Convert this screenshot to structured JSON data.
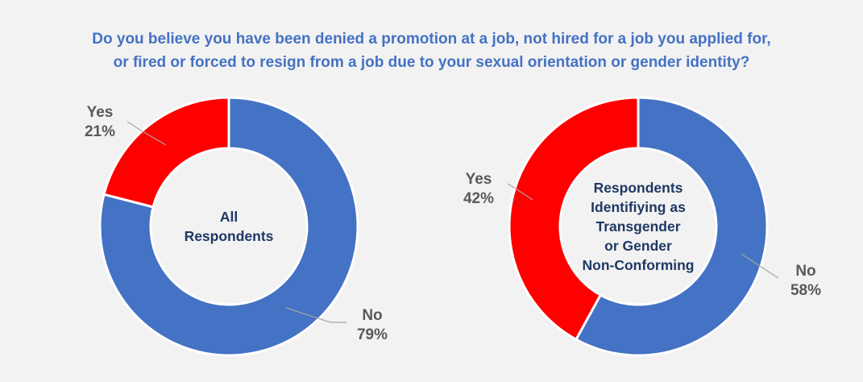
{
  "title": {
    "line1": "Do you believe you have been denied a promotion at a job, not hired for a job you applied for,",
    "line2": "or fired or forced to resign from a job due to your sexual orientation or gender identity?"
  },
  "colors": {
    "no": "#4472c4",
    "yes": "#ff0000",
    "background": "#f2f2f2",
    "title": "#4472c4"
  },
  "chart_data": [
    {
      "type": "pie",
      "variant": "donut",
      "title": "",
      "center_label": [
        "All",
        "Respondents"
      ],
      "categories": [
        "No",
        "Yes"
      ],
      "values": [
        79,
        21
      ],
      "value_labels": [
        "79%",
        "21%"
      ],
      "colors": [
        "#4472c4",
        "#ff0000"
      ]
    },
    {
      "type": "pie",
      "variant": "donut",
      "title": "",
      "center_label": [
        "Respondents",
        "Identifiying as",
        "Transgender",
        "or Gender",
        "Non-Conforming"
      ],
      "categories": [
        "No",
        "Yes"
      ],
      "values": [
        58,
        42
      ],
      "value_labels": [
        "58%",
        "42%"
      ],
      "colors": [
        "#4472c4",
        "#ff0000"
      ]
    }
  ]
}
